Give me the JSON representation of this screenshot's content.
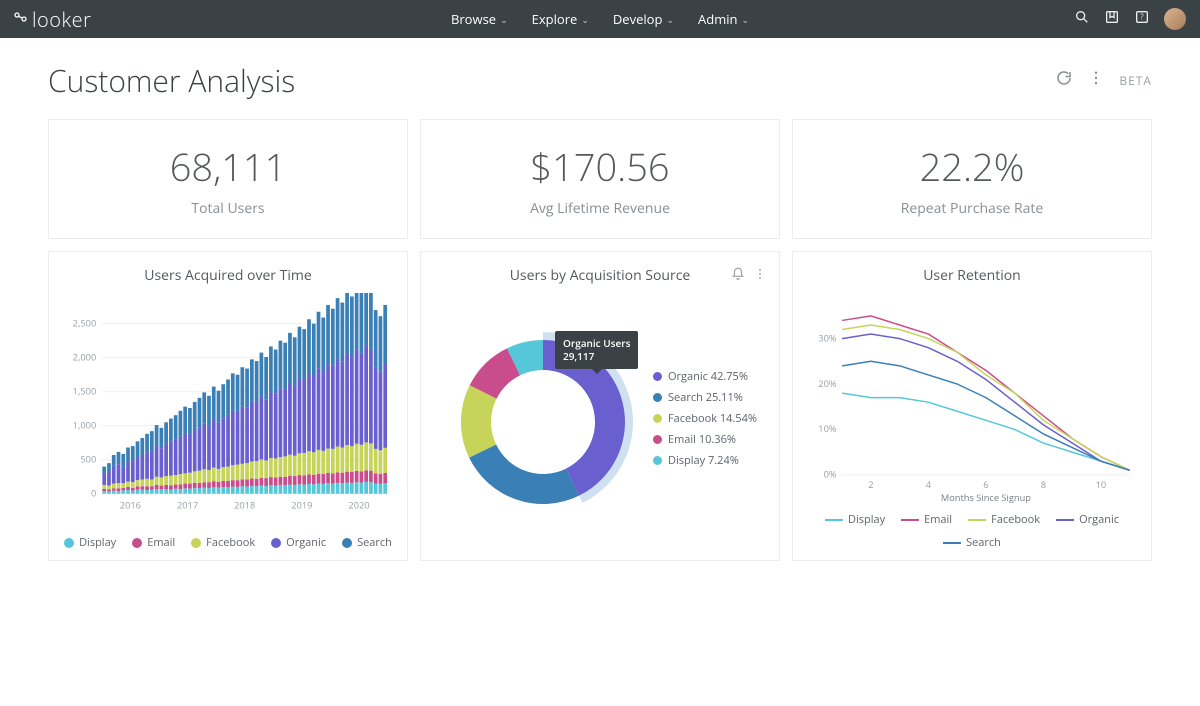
{
  "brand": {
    "name": "looker"
  },
  "nav": {
    "items": [
      {
        "label": "Browse"
      },
      {
        "label": "Explore"
      },
      {
        "label": "Develop"
      },
      {
        "label": "Admin"
      }
    ]
  },
  "header": {
    "title": "Customer Analysis",
    "beta_label": "BETA"
  },
  "colors": {
    "display": "#55c7d9",
    "email": "#c94d8c",
    "facebook": "#c6d45a",
    "organic": "#6a5fcf",
    "search": "#3a7fb5",
    "topbar": "#3a4245",
    "grid": "#eceef0",
    "text": "#55595c",
    "muted": "#9aa0a6",
    "outer_ring": "#cfe0f0"
  },
  "kpis": [
    {
      "value": "68,111",
      "label": "Total Users"
    },
    {
      "value": "$170.56",
      "label": "Avg Lifetime Revenue"
    },
    {
      "value": "22.2%",
      "label": "Repeat Purchase Rate"
    }
  ],
  "stacked_chart": {
    "title": "Users Acquired over Time",
    "type": "stacked-bar",
    "x_categories": [
      "2016",
      "2017",
      "2018",
      "2019",
      "2020"
    ],
    "y": {
      "min": 0,
      "max": 2700,
      "ticks": [
        0,
        500,
        1000,
        1500,
        2000,
        2500
      ]
    },
    "series_order": [
      "display",
      "email",
      "facebook",
      "organic",
      "search"
    ],
    "legend": [
      {
        "key": "display",
        "label": "Display"
      },
      {
        "key": "email",
        "label": "Email"
      },
      {
        "key": "facebook",
        "label": "Facebook"
      },
      {
        "key": "organic",
        "label": "Organic"
      },
      {
        "key": "search",
        "label": "Search"
      }
    ],
    "bars": [
      {
        "d": 40,
        "e": 30,
        "f": 60,
        "o": 170,
        "s": 100
      },
      {
        "d": 35,
        "e": 30,
        "f": 55,
        "o": 200,
        "s": 130
      },
      {
        "d": 45,
        "e": 35,
        "f": 70,
        "o": 260,
        "s": 160
      },
      {
        "d": 40,
        "e": 40,
        "f": 75,
        "o": 280,
        "s": 180
      },
      {
        "d": 50,
        "e": 35,
        "f": 70,
        "o": 240,
        "s": 190
      },
      {
        "d": 55,
        "e": 45,
        "f": 80,
        "o": 300,
        "s": 200
      },
      {
        "d": 45,
        "e": 40,
        "f": 85,
        "o": 320,
        "s": 210
      },
      {
        "d": 60,
        "e": 50,
        "f": 90,
        "o": 340,
        "s": 230
      },
      {
        "d": 60,
        "e": 50,
        "f": 100,
        "o": 360,
        "s": 250
      },
      {
        "d": 55,
        "e": 55,
        "f": 110,
        "o": 390,
        "s": 270
      },
      {
        "d": 60,
        "e": 50,
        "f": 100,
        "o": 420,
        "s": 290
      },
      {
        "d": 70,
        "e": 60,
        "f": 120,
        "o": 450,
        "s": 310
      },
      {
        "d": 65,
        "e": 55,
        "f": 120,
        "o": 430,
        "s": 300
      },
      {
        "d": 70,
        "e": 60,
        "f": 130,
        "o": 470,
        "s": 320
      },
      {
        "d": 60,
        "e": 65,
        "f": 140,
        "o": 500,
        "s": 340
      },
      {
        "d": 75,
        "e": 60,
        "f": 140,
        "o": 520,
        "s": 360
      },
      {
        "d": 70,
        "e": 70,
        "f": 150,
        "o": 550,
        "s": 380
      },
      {
        "d": 80,
        "e": 70,
        "f": 150,
        "o": 580,
        "s": 400
      },
      {
        "d": 75,
        "e": 75,
        "f": 160,
        "o": 560,
        "s": 390
      },
      {
        "d": 85,
        "e": 75,
        "f": 170,
        "o": 600,
        "s": 420
      },
      {
        "d": 80,
        "e": 80,
        "f": 180,
        "o": 630,
        "s": 440
      },
      {
        "d": 90,
        "e": 80,
        "f": 190,
        "o": 670,
        "s": 460
      },
      {
        "d": 85,
        "e": 85,
        "f": 180,
        "o": 640,
        "s": 450
      },
      {
        "d": 95,
        "e": 90,
        "f": 200,
        "o": 700,
        "s": 490
      },
      {
        "d": 90,
        "e": 85,
        "f": 190,
        "o": 680,
        "s": 470
      },
      {
        "d": 100,
        "e": 90,
        "f": 200,
        "o": 720,
        "s": 500
      },
      {
        "d": 95,
        "e": 95,
        "f": 210,
        "o": 760,
        "s": 520
      },
      {
        "d": 105,
        "e": 95,
        "f": 220,
        "o": 800,
        "s": 550
      },
      {
        "d": 100,
        "e": 100,
        "f": 230,
        "o": 780,
        "s": 540
      },
      {
        "d": 110,
        "e": 100,
        "f": 230,
        "o": 840,
        "s": 580
      },
      {
        "d": 105,
        "e": 105,
        "f": 240,
        "o": 820,
        "s": 570
      },
      {
        "d": 115,
        "e": 110,
        "f": 250,
        "o": 890,
        "s": 610
      },
      {
        "d": 110,
        "e": 110,
        "f": 260,
        "o": 870,
        "s": 600
      },
      {
        "d": 120,
        "e": 115,
        "f": 270,
        "o": 930,
        "s": 640
      },
      {
        "d": 115,
        "e": 115,
        "f": 260,
        "o": 900,
        "s": 620
      },
      {
        "d": 125,
        "e": 120,
        "f": 280,
        "o": 970,
        "s": 670
      },
      {
        "d": 120,
        "e": 120,
        "f": 280,
        "o": 950,
        "s": 650
      },
      {
        "d": 130,
        "e": 120,
        "f": 290,
        "o": 1010,
        "s": 700
      },
      {
        "d": 125,
        "e": 125,
        "f": 300,
        "o": 990,
        "s": 680
      },
      {
        "d": 135,
        "e": 130,
        "f": 310,
        "o": 1060,
        "s": 730
      },
      {
        "d": 130,
        "e": 130,
        "f": 300,
        "o": 1030,
        "s": 710
      },
      {
        "d": 140,
        "e": 135,
        "f": 320,
        "o": 1100,
        "s": 760
      },
      {
        "d": 135,
        "e": 135,
        "f": 330,
        "o": 1080,
        "s": 740
      },
      {
        "d": 145,
        "e": 140,
        "f": 340,
        "o": 1150,
        "s": 790
      },
      {
        "d": 140,
        "e": 140,
        "f": 330,
        "o": 1120,
        "s": 770
      },
      {
        "d": 150,
        "e": 145,
        "f": 350,
        "o": 1200,
        "s": 830
      },
      {
        "d": 145,
        "e": 145,
        "f": 340,
        "o": 1160,
        "s": 800
      },
      {
        "d": 155,
        "e": 150,
        "f": 360,
        "o": 1250,
        "s": 860
      },
      {
        "d": 150,
        "e": 150,
        "f": 360,
        "o": 1220,
        "s": 840
      },
      {
        "d": 160,
        "e": 155,
        "f": 380,
        "o": 1290,
        "s": 890
      },
      {
        "d": 155,
        "e": 155,
        "f": 370,
        "o": 1260,
        "s": 870
      },
      {
        "d": 165,
        "e": 160,
        "f": 390,
        "o": 1340,
        "s": 920
      },
      {
        "d": 160,
        "e": 160,
        "f": 380,
        "o": 1300,
        "s": 900
      },
      {
        "d": 170,
        "e": 165,
        "f": 400,
        "o": 1380,
        "s": 950
      },
      {
        "d": 165,
        "e": 165,
        "f": 390,
        "o": 1350,
        "s": 930
      },
      {
        "d": 175,
        "e": 170,
        "f": 410,
        "o": 1430,
        "s": 980
      },
      {
        "d": 170,
        "e": 170,
        "f": 400,
        "o": 1390,
        "s": 960
      },
      {
        "d": 150,
        "e": 150,
        "f": 360,
        "o": 1200,
        "s": 840
      },
      {
        "d": 145,
        "e": 145,
        "f": 350,
        "o": 1160,
        "s": 810
      },
      {
        "d": 155,
        "e": 150,
        "f": 370,
        "o": 1240,
        "s": 860
      }
    ]
  },
  "donut": {
    "title": "Users by Acquisition Source",
    "type": "donut",
    "inner_radius": 52,
    "outer_radius": 82,
    "shadow_radius": 90,
    "slices": [
      {
        "key": "organic",
        "label": "Organic",
        "pct": 42.75
      },
      {
        "key": "search",
        "label": "Search",
        "pct": 25.11
      },
      {
        "key": "facebook",
        "label": "Facebook",
        "pct": 14.54
      },
      {
        "key": "email",
        "label": "Email",
        "pct": 10.36
      },
      {
        "key": "display",
        "label": "Display",
        "pct": 7.24
      }
    ],
    "tooltip": {
      "label": "Organic Users",
      "value": "29,117"
    }
  },
  "retention": {
    "title": "User Retention",
    "type": "line",
    "x": {
      "label": "Months Since Signup",
      "min": 1,
      "max": 11,
      "ticks": [
        2,
        4,
        6,
        8,
        10
      ]
    },
    "y": {
      "min": 0,
      "max": 38,
      "ticks": [
        0,
        10,
        20,
        30
      ],
      "suffix": "%"
    },
    "series": [
      {
        "key": "display",
        "label": "Display",
        "values": [
          18,
          17,
          17,
          16,
          14,
          12,
          10,
          7,
          5,
          3,
          1
        ]
      },
      {
        "key": "email",
        "label": "Email",
        "values": [
          34,
          35,
          33,
          31,
          27,
          23,
          18,
          13,
          8,
          4,
          1
        ]
      },
      {
        "key": "facebook",
        "label": "Facebook",
        "values": [
          32,
          33,
          32,
          30,
          27,
          22,
          18,
          12,
          8,
          4,
          1
        ]
      },
      {
        "key": "organic",
        "label": "Organic",
        "values": [
          30,
          31,
          30,
          28,
          25,
          21,
          16,
          11,
          7,
          3,
          1
        ]
      },
      {
        "key": "search",
        "label": "Search",
        "values": [
          24,
          25,
          24,
          22,
          20,
          17,
          13,
          9,
          6,
          3,
          1
        ]
      }
    ]
  }
}
